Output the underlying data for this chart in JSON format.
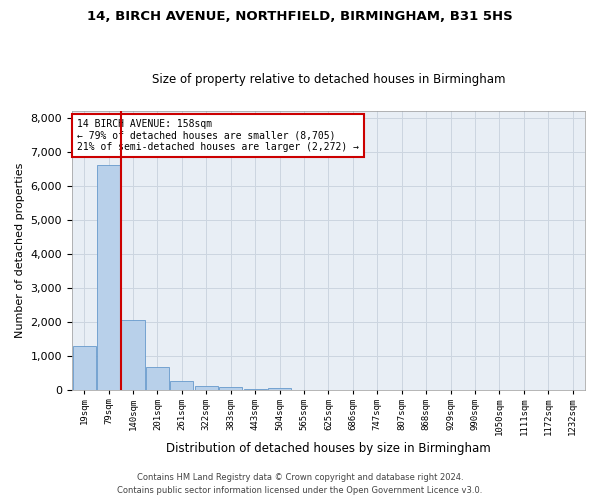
{
  "title1": "14, BIRCH AVENUE, NORTHFIELD, BIRMINGHAM, B31 5HS",
  "title2": "Size of property relative to detached houses in Birmingham",
  "xlabel": "Distribution of detached houses by size in Birmingham",
  "ylabel": "Number of detached properties",
  "annotation_line1": "14 BIRCH AVENUE: 158sqm",
  "annotation_line2": "← 79% of detached houses are smaller (8,705)",
  "annotation_line3": "21% of semi-detached houses are larger (2,272) →",
  "bin_labels": [
    "19sqm",
    "79sqm",
    "140sqm",
    "201sqm",
    "261sqm",
    "322sqm",
    "383sqm",
    "443sqm",
    "504sqm",
    "565sqm",
    "625sqm",
    "686sqm",
    "747sqm",
    "807sqm",
    "868sqm",
    "929sqm",
    "990sqm",
    "1050sqm",
    "1111sqm",
    "1172sqm",
    "1232sqm"
  ],
  "bin_values": [
    1310,
    6600,
    2080,
    680,
    270,
    140,
    90,
    55,
    80,
    0,
    0,
    0,
    0,
    0,
    0,
    0,
    0,
    0,
    0,
    0,
    0
  ],
  "bar_color": "#b8d0ea",
  "bar_edge_color": "#6699cc",
  "vline_color": "#cc0000",
  "annotation_box_color": "#cc0000",
  "grid_color": "#ccd5e0",
  "bg_color": "#e8eef5",
  "footer1": "Contains HM Land Registry data © Crown copyright and database right 2024.",
  "footer2": "Contains public sector information licensed under the Open Government Licence v3.0.",
  "ylim": [
    0,
    8200
  ],
  "yticks": [
    0,
    1000,
    2000,
    3000,
    4000,
    5000,
    6000,
    7000,
    8000
  ]
}
